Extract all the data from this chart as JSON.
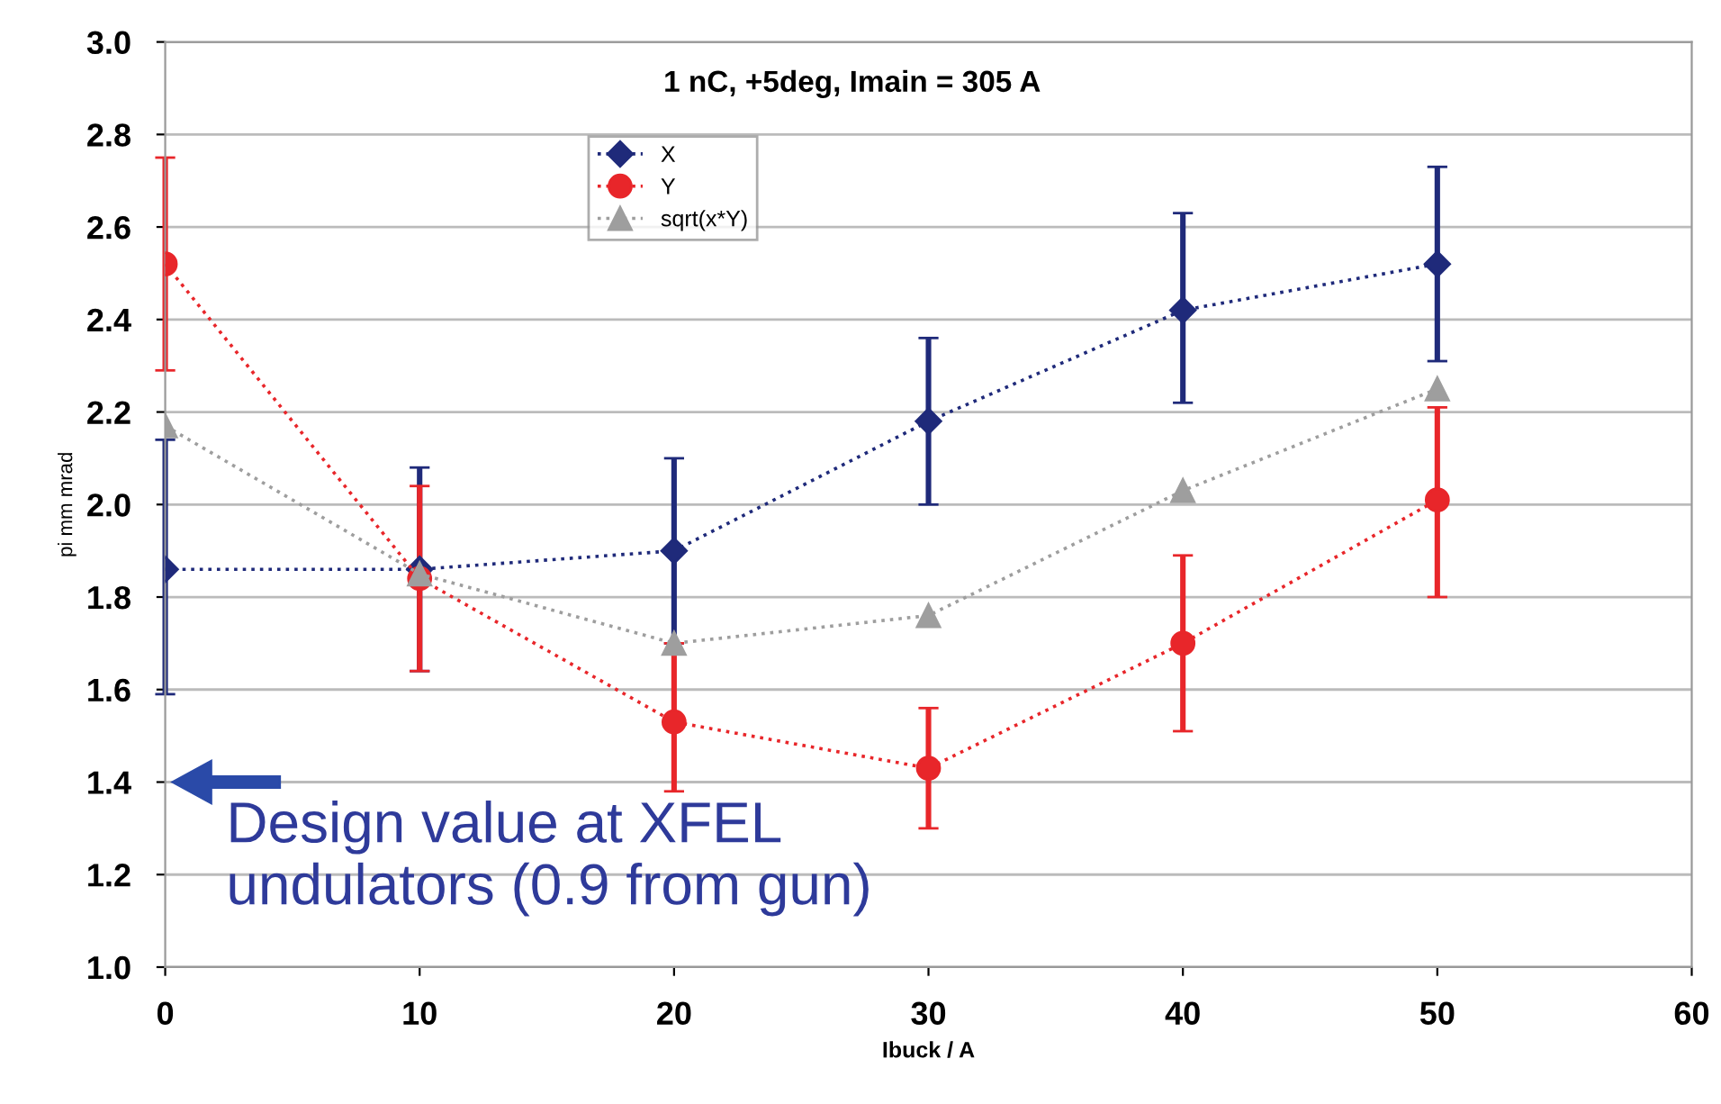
{
  "chart_data": {
    "type": "line",
    "title": "1 nC, +5deg, Imain = 305 A",
    "xlabel": "Ibuck / A",
    "ylabel": "pi mm mrad",
    "x": [
      0,
      10,
      20,
      30,
      40,
      50
    ],
    "series": [
      {
        "name": "X",
        "color": "#1f2a7a",
        "marker": "diamond",
        "values": [
          1.86,
          1.86,
          1.9,
          2.18,
          2.42,
          2.52
        ],
        "errors": [
          [
            1.59,
            2.14
          ],
          [
            1.64,
            2.08
          ],
          [
            1.7,
            2.1
          ],
          [
            2.0,
            2.36
          ],
          [
            2.22,
            2.63
          ],
          [
            2.31,
            2.73
          ]
        ]
      },
      {
        "name": "Y",
        "color": "#e8262a",
        "marker": "circle",
        "values": [
          2.52,
          1.84,
          1.53,
          1.43,
          1.7,
          2.01
        ],
        "errors": [
          [
            2.29,
            2.75
          ],
          [
            1.64,
            2.04
          ],
          [
            1.38,
            1.7
          ],
          [
            1.3,
            1.56
          ],
          [
            1.51,
            1.89
          ],
          [
            1.8,
            2.21
          ]
        ]
      },
      {
        "name": "sqrt(x*Y)",
        "color": "#9e9e9e",
        "marker": "triangle",
        "values": [
          2.17,
          1.85,
          1.7,
          1.76,
          2.03,
          2.25
        ]
      }
    ],
    "line_style": "dotted",
    "xlim": [
      0,
      60
    ],
    "xticks": [
      0,
      10,
      20,
      30,
      40,
      50,
      60
    ],
    "ylim": [
      1.0,
      3.0
    ],
    "yticks": [
      {
        "value": 1.0,
        "label": "1.0"
      },
      1.2,
      1.4,
      1.6,
      1.8,
      {
        "value": 2.0,
        "label": "2.0"
      },
      2.2,
      2.4,
      2.6,
      2.8,
      {
        "value": 3.0,
        "label": "3.0"
      }
    ],
    "grid": "y",
    "legend": "top",
    "annotations": [
      "Design value at XFEL\nundulators (0.9 from gun)"
    ]
  }
}
